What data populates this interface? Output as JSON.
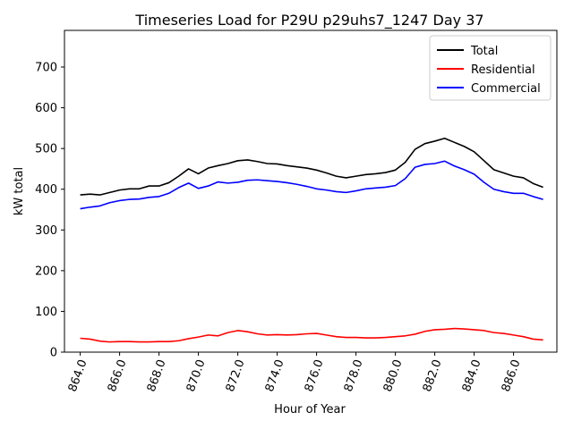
{
  "chart_data": {
    "type": "line",
    "title": "Timeseries Load for P29U p29uhs7_1247  Day 37",
    "xlabel": "Hour of Year",
    "ylabel": "kW total",
    "xlim": [
      863.2,
      888.2
    ],
    "ylim": [
      0,
      790
    ],
    "xticks": [
      864,
      866,
      868,
      870,
      872,
      874,
      876,
      878,
      880,
      882,
      884,
      886
    ],
    "xtick_labels": [
      "864.0",
      "866.0",
      "868.0",
      "870.0",
      "872.0",
      "874.0",
      "876.0",
      "878.0",
      "880.0",
      "882.0",
      "884.0",
      "886.0"
    ],
    "yticks": [
      0,
      100,
      200,
      300,
      400,
      500,
      600,
      700
    ],
    "ytick_labels": [
      "0",
      "100",
      "200",
      "300",
      "400",
      "500",
      "600",
      "700"
    ],
    "grid": false,
    "legend_position": "top-right",
    "x": [
      864.0,
      864.5,
      865.0,
      865.5,
      866.0,
      866.5,
      867.0,
      867.5,
      868.0,
      868.5,
      869.0,
      869.5,
      870.0,
      870.5,
      871.0,
      871.5,
      872.0,
      872.5,
      873.0,
      873.5,
      874.0,
      874.5,
      875.0,
      875.5,
      876.0,
      876.5,
      877.0,
      877.5,
      878.0,
      878.5,
      879.0,
      879.5,
      880.0,
      880.5,
      881.0,
      881.5,
      882.0,
      882.5,
      883.0,
      883.5,
      884.0,
      884.5,
      885.0,
      885.5,
      886.0,
      886.5,
      887.0,
      887.5
    ],
    "series": [
      {
        "name": "Total",
        "color": "#000000",
        "values": [
          386,
          388,
          386,
          392,
          398,
          401,
          401,
          408,
          408,
          416,
          432,
          450,
          438,
          452,
          458,
          463,
          470,
          472,
          468,
          463,
          462,
          458,
          455,
          452,
          447,
          440,
          432,
          428,
          432,
          436,
          438,
          441,
          447,
          466,
          498,
          512,
          518,
          525,
          515,
          505,
          492,
          470,
          448,
          440,
          432,
          428,
          414,
          405
        ]
      },
      {
        "name": "Residential",
        "color": "#ff0000",
        "values": [
          34,
          32,
          27,
          25,
          26,
          26,
          25,
          25,
          26,
          26,
          28,
          33,
          37,
          42,
          40,
          48,
          53,
          50,
          45,
          42,
          43,
          42,
          43,
          45,
          46,
          42,
          38,
          36,
          36,
          35,
          35,
          36,
          38,
          40,
          44,
          51,
          55,
          56,
          58,
          57,
          55,
          53,
          48,
          46,
          42,
          38,
          32,
          30
        ]
      },
      {
        "name": "Commercial",
        "color": "#0000ff",
        "values": [
          352,
          356,
          359,
          367,
          372,
          375,
          376,
          380,
          382,
          390,
          404,
          415,
          402,
          408,
          418,
          415,
          417,
          422,
          423,
          421,
          419,
          416,
          412,
          407,
          401,
          398,
          394,
          392,
          396,
          401,
          403,
          405,
          409,
          426,
          454,
          461,
          463,
          469,
          457,
          448,
          437,
          417,
          400,
          394,
          390,
          390,
          382,
          375
        ]
      }
    ]
  }
}
